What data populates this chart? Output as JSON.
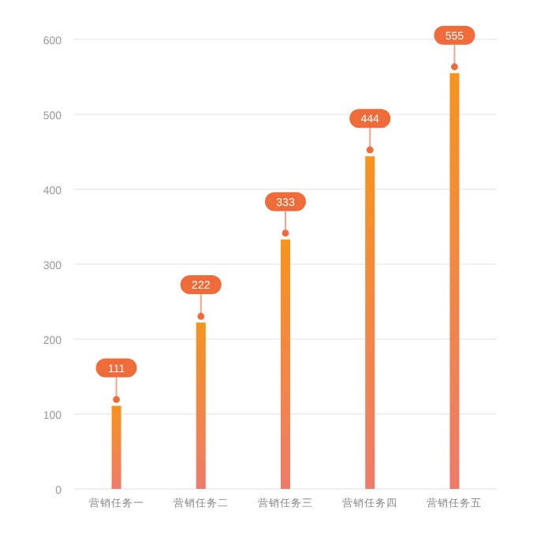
{
  "chart_data": {
    "type": "bar",
    "categories": [
      "营销任务一",
      "营销任务二",
      "营销任务三",
      "营销任务四",
      "营销任务五"
    ],
    "series": [
      {
        "color": "#f7931e",
        "values": [
          111,
          222,
          333,
          444,
          555
        ]
      }
    ],
    "ylim": [
      0,
      600
    ],
    "yticks": [
      0,
      100,
      200,
      300,
      400,
      500,
      600
    ],
    "grid": "y",
    "data_labels": true
  }
}
